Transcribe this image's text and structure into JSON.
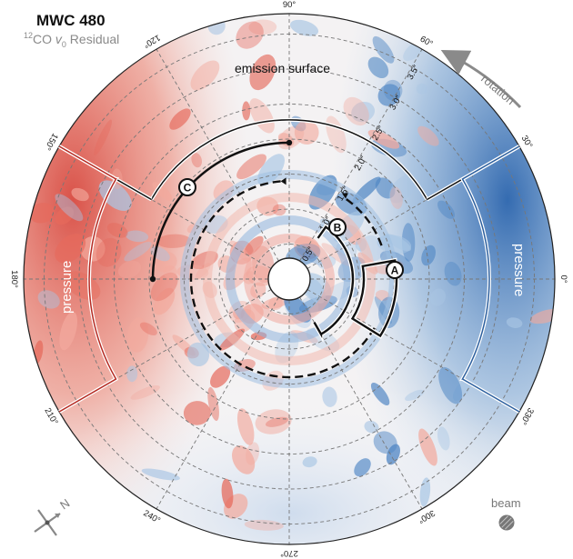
{
  "header": {
    "title": "MWC 480",
    "subtitle_iso": "12",
    "subtitle_mol": "CO ",
    "subtitle_v": "v",
    "subtitle_sub": "0",
    "subtitle_rest": " Residual"
  },
  "azimuth_ticks": [
    {
      "deg": 0,
      "label": "0°"
    },
    {
      "deg": 30,
      "label": "30°"
    },
    {
      "deg": 60,
      "label": "60°"
    },
    {
      "deg": 90,
      "label": "90°"
    },
    {
      "deg": 120,
      "label": "120°"
    },
    {
      "deg": 150,
      "label": "150°"
    },
    {
      "deg": 180,
      "label": "180°"
    },
    {
      "deg": 210,
      "label": "210°"
    },
    {
      "deg": 240,
      "label": "240°"
    },
    {
      "deg": 270,
      "label": "270°"
    },
    {
      "deg": 300,
      "label": "300°"
    },
    {
      "deg": 330,
      "label": "330°"
    }
  ],
  "radius_ticks": [
    {
      "r": 0.5,
      "label": "0.5″"
    },
    {
      "r": 1.0,
      "label": "1.0″"
    },
    {
      "r": 1.5,
      "label": "1.5″"
    },
    {
      "r": 2.0,
      "label": "2.0″"
    },
    {
      "r": 2.5,
      "label": "2.5″"
    },
    {
      "r": 3.0,
      "label": "3.0″"
    },
    {
      "r": 3.5,
      "label": "3.5″"
    }
  ],
  "annotations": {
    "emission_surface": "emission surface",
    "pressure_left": "pressure",
    "pressure_right": "pressure",
    "rotation": "rotation",
    "beam": "beam",
    "north": "N",
    "label_a": "A",
    "label_b": "B",
    "label_c": "C"
  },
  "colors": {
    "red": "#d6453f",
    "blue": "#2f6db5",
    "pressure_red": "#b52a22",
    "pressure_blue": "#2c5f9e"
  }
}
